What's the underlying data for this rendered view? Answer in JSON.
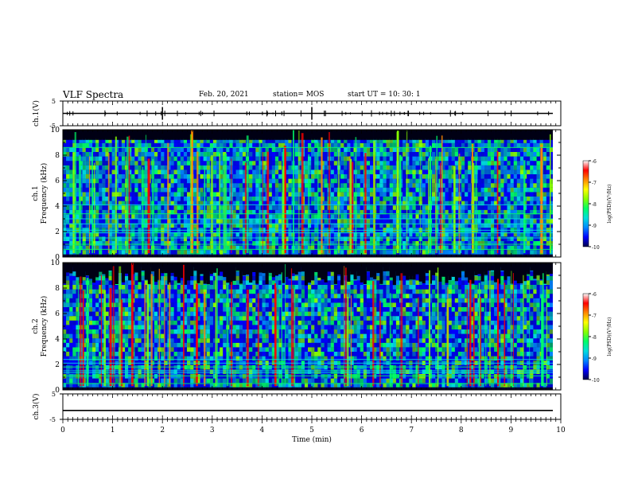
{
  "header": {
    "title": "VLF Spectra",
    "date": "Feb. 20, 2021",
    "station": "station= MOS",
    "start_time": "start  UT =   10: 30: 1"
  },
  "chart_data": [
    {
      "type": "line",
      "panel": "ch1-waveform",
      "ylabel": "ch.1(V)",
      "ylim": [
        -5,
        5
      ],
      "yticks": [
        "5",
        "-5"
      ],
      "xlim": [
        0,
        10
      ],
      "series": [
        {
          "values": [
            0
          ]
        }
      ]
    },
    {
      "type": "heatmap",
      "panel": "ch1-spectrogram",
      "ylabel_line1": "ch.1",
      "ylabel_line2": "Frequency (kHz)",
      "ylim": [
        0,
        10
      ],
      "yticks": [
        "0",
        "2",
        "4",
        "6",
        "8",
        "10"
      ],
      "xlim": [
        0,
        10
      ],
      "colorscale": {
        "label": "log(PSD)(V²/Hz)",
        "range": [
          -10,
          -6
        ],
        "ticks": [
          "-6",
          "-7",
          "-8",
          "-9",
          "-10"
        ],
        "colors": [
          "#00004a",
          "#0000ff",
          "#0088ff",
          "#00dddd",
          "#00ff66",
          "#88ff00",
          "#ffff00",
          "#ff8800",
          "#ff0000",
          "#ffffff"
        ]
      }
    },
    {
      "type": "heatmap",
      "panel": "ch2-spectrogram",
      "ylabel_line1": "ch.2",
      "ylabel_line2": "Frequency (kHz)",
      "ylim": [
        0,
        10
      ],
      "yticks": [
        "0",
        "2",
        "4",
        "6",
        "8",
        "10"
      ],
      "xlim": [
        0,
        10
      ],
      "colorscale": {
        "label": "log(PSD)(V²/Hz)",
        "range": [
          -10,
          -6
        ],
        "ticks": [
          "-6",
          "-7",
          "-8",
          "-9",
          "-10"
        ]
      }
    },
    {
      "type": "line",
      "panel": "ch3-waveform",
      "ylabel": "ch.3(V)",
      "ylim": [
        -5,
        5
      ],
      "yticks": [
        "5",
        "-5"
      ],
      "xlim": [
        0,
        10
      ],
      "xlabel": "Time  (min)",
      "xticks": [
        "0",
        "1",
        "2",
        "3",
        "4",
        "5",
        "6",
        "7",
        "8",
        "9",
        "10"
      ],
      "series": [
        {
          "values": [
            -1.5
          ]
        }
      ]
    }
  ]
}
